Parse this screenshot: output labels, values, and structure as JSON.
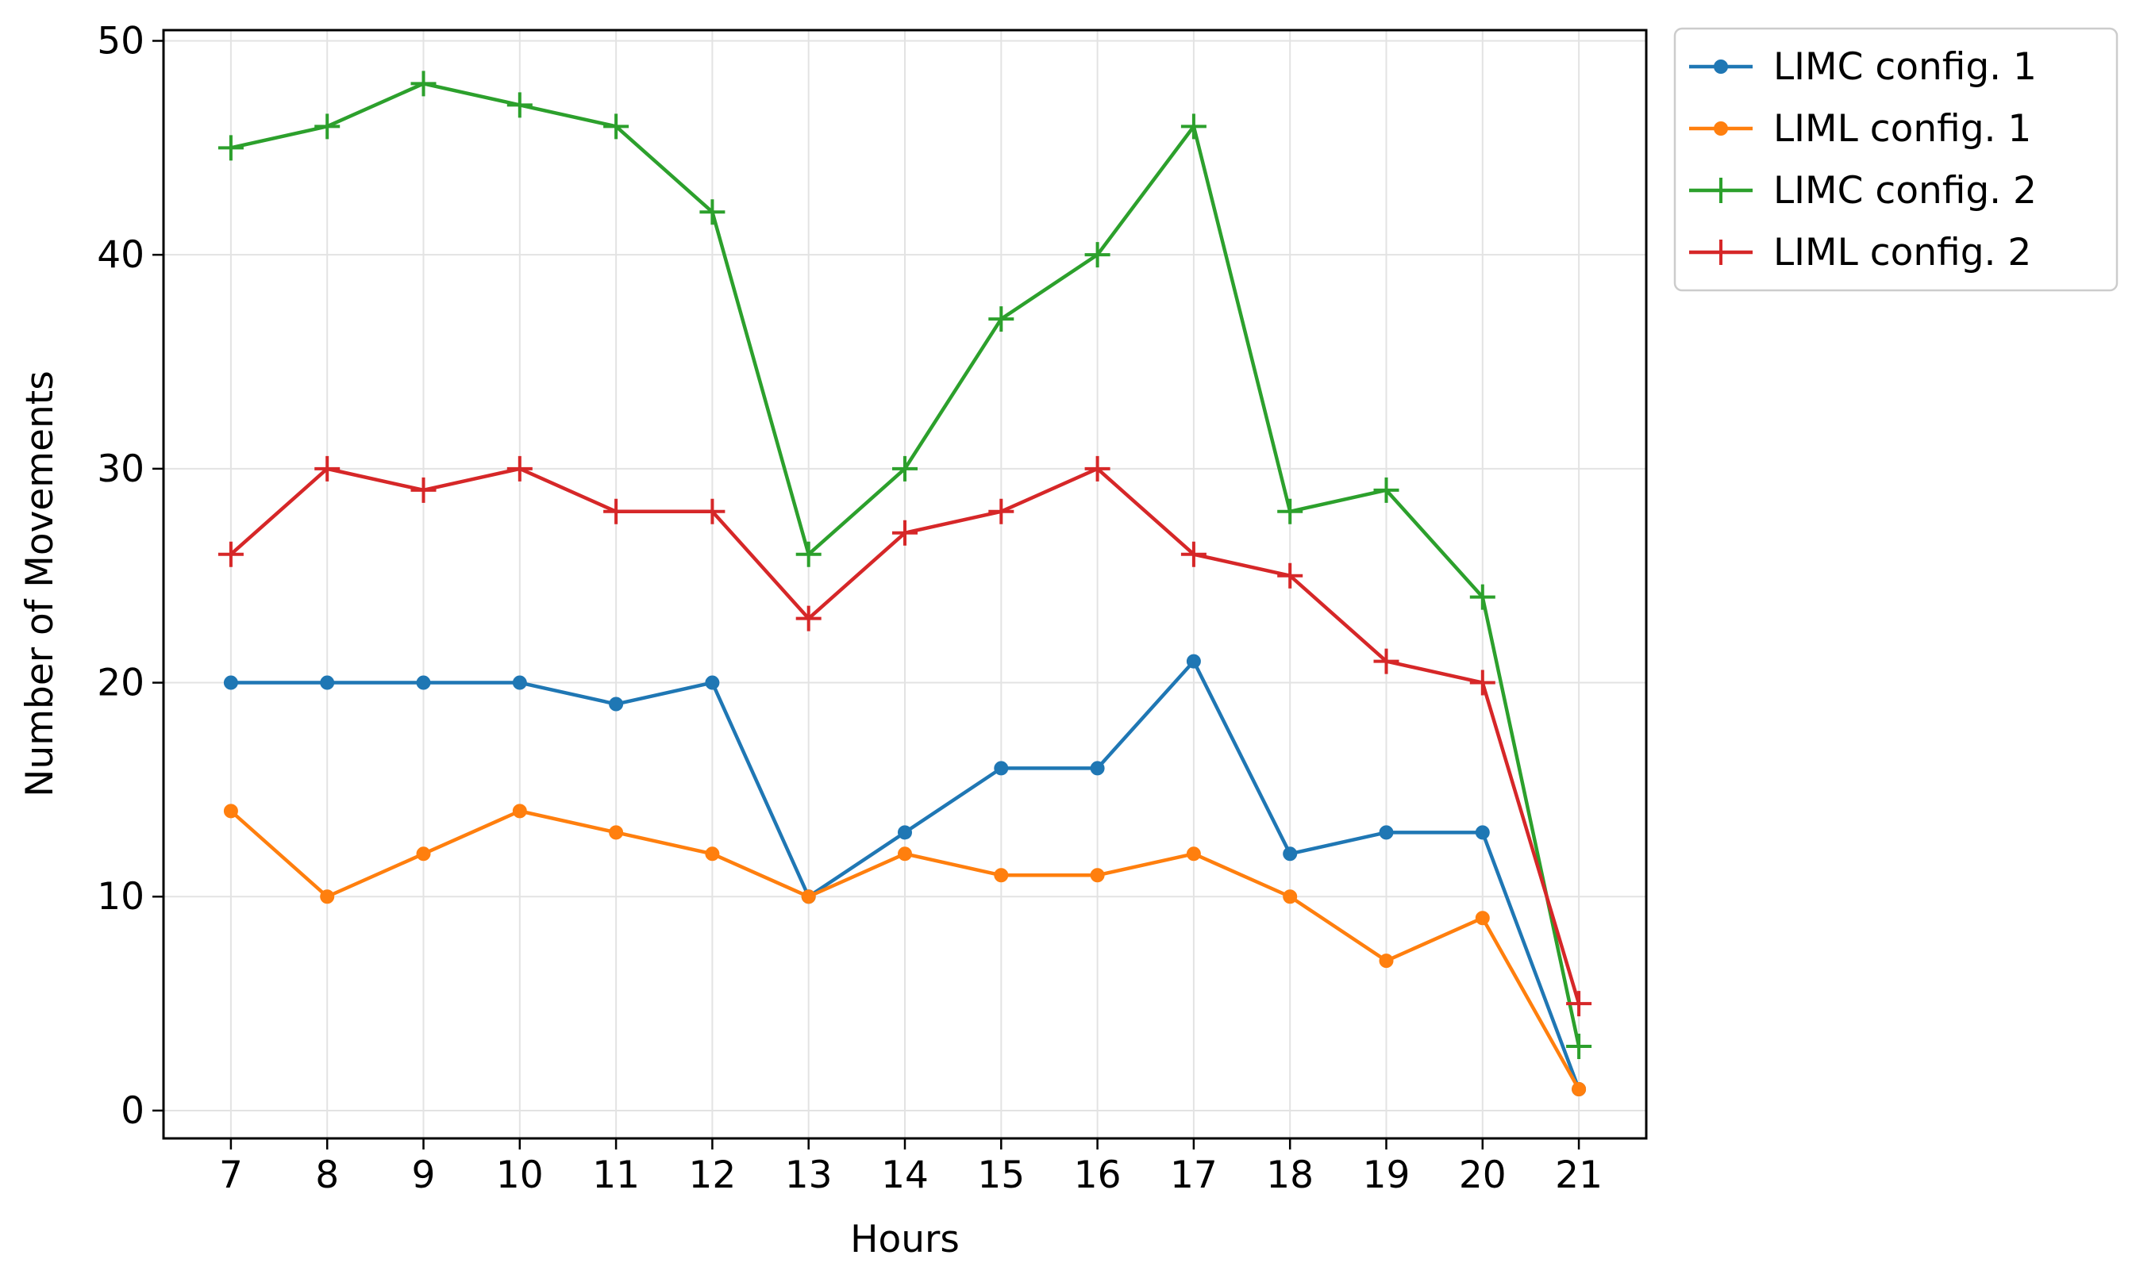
{
  "chart_data": {
    "type": "line",
    "title": "",
    "xlabel": "Hours",
    "ylabel": "Number of Movements",
    "x": [
      7,
      8,
      9,
      10,
      11,
      12,
      13,
      14,
      15,
      16,
      17,
      18,
      19,
      20,
      21
    ],
    "x_tick_labels": [
      "7",
      "8",
      "9",
      "10",
      "11",
      "12",
      "13",
      "14",
      "15",
      "16",
      "17",
      "18",
      "19",
      "20",
      "21"
    ],
    "y_ticks": [
      0,
      10,
      20,
      30,
      40,
      50
    ],
    "y_tick_labels": [
      "0",
      "10",
      "20",
      "30",
      "40",
      "50"
    ],
    "xlim": [
      6.3,
      21.7
    ],
    "ylim": [
      -1.3,
      50.5
    ],
    "grid": true,
    "legend_position": "outside-top-right",
    "series": [
      {
        "name": "LIMC config. 1",
        "marker": "dot",
        "color": "#1f77b4",
        "values": [
          20,
          20,
          20,
          20,
          19,
          20,
          10,
          13,
          16,
          16,
          21,
          12,
          13,
          13,
          1
        ]
      },
      {
        "name": "LIML config. 1",
        "marker": "dot",
        "color": "#ff7f0e",
        "values": [
          14,
          10,
          12,
          14,
          13,
          12,
          10,
          12,
          11,
          11,
          12,
          10,
          7,
          9,
          1
        ]
      },
      {
        "name": "LIMC config. 2",
        "marker": "plus",
        "color": "#2ca02c",
        "values": [
          45,
          46,
          48,
          47,
          46,
          42,
          26,
          30,
          37,
          40,
          46,
          28,
          29,
          24,
          3
        ]
      },
      {
        "name": "LIML config. 2",
        "marker": "plus",
        "color": "#d62728",
        "values": [
          26,
          30,
          29,
          30,
          28,
          28,
          23,
          27,
          28,
          30,
          26,
          25,
          21,
          20,
          5
        ]
      }
    ]
  }
}
